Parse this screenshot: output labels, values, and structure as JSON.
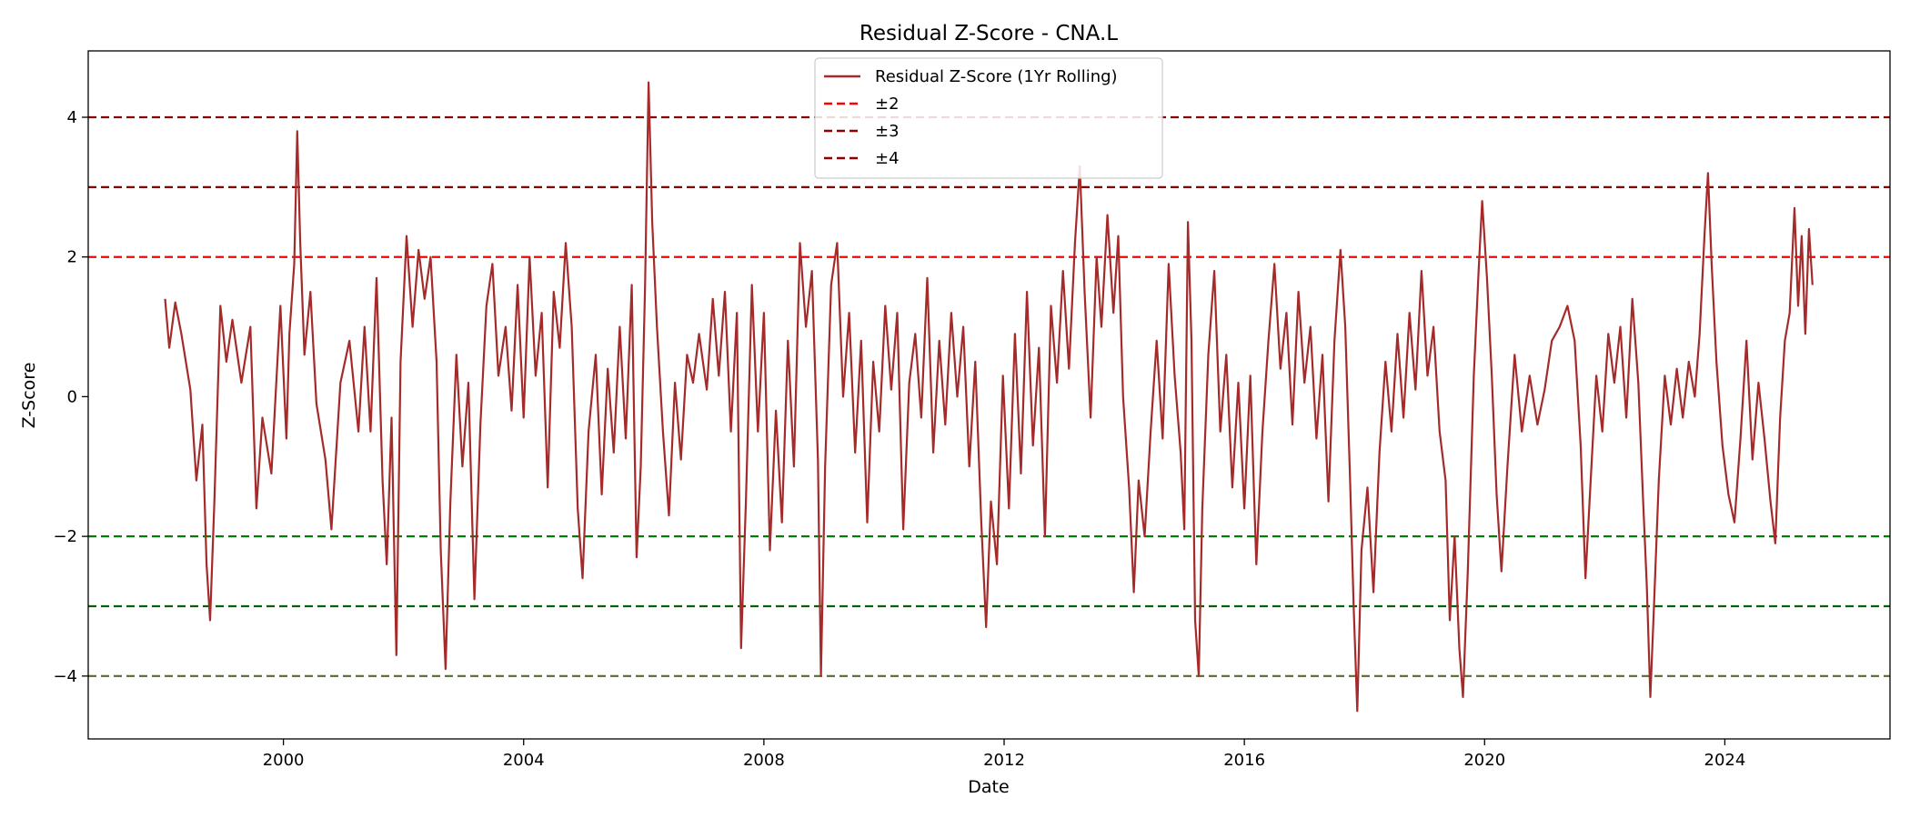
{
  "chart_data": {
    "type": "line",
    "title": "Residual Z-Score - CNA.L",
    "xlabel": "Date",
    "ylabel": "Z-Score",
    "xlim": [
      1996.75,
      2026.75
    ],
    "ylim": [
      -4.9,
      4.95
    ],
    "x_ticks": [
      2000,
      2004,
      2008,
      2012,
      2016,
      2020,
      2024
    ],
    "y_ticks": [
      -4,
      -2,
      0,
      2,
      4
    ],
    "y_tick_labels": [
      "−4",
      "−2",
      "0",
      "2",
      "4"
    ],
    "grid": false,
    "legend_position": "top-center",
    "series": [
      {
        "name": "Residual Z-Score (1Yr Rolling)",
        "color": "#a52a2a",
        "points": [
          [
            1998.03,
            1.4
          ],
          [
            1998.1,
            0.7
          ],
          [
            1998.2,
            1.35
          ],
          [
            1998.3,
            0.9
          ],
          [
            1998.45,
            0.1
          ],
          [
            1998.55,
            -1.2
          ],
          [
            1998.65,
            -0.4
          ],
          [
            1998.72,
            -2.4
          ],
          [
            1998.78,
            -3.2
          ],
          [
            1998.85,
            -1.5
          ],
          [
            1998.95,
            1.3
          ],
          [
            1999.05,
            0.5
          ],
          [
            1999.15,
            1.1
          ],
          [
            1999.3,
            0.2
          ],
          [
            1999.45,
            1.0
          ],
          [
            1999.55,
            -1.6
          ],
          [
            1999.65,
            -0.3
          ],
          [
            1999.8,
            -1.1
          ],
          [
            1999.95,
            1.3
          ],
          [
            2000.05,
            -0.6
          ],
          [
            2000.1,
            0.9
          ],
          [
            2000.18,
            1.9
          ],
          [
            2000.23,
            3.8
          ],
          [
            2000.28,
            2.2
          ],
          [
            2000.35,
            0.6
          ],
          [
            2000.45,
            1.5
          ],
          [
            2000.55,
            -0.1
          ],
          [
            2000.7,
            -0.9
          ],
          [
            2000.8,
            -1.9
          ],
          [
            2000.95,
            0.2
          ],
          [
            2001.1,
            0.8
          ],
          [
            2001.25,
            -0.5
          ],
          [
            2001.35,
            1.0
          ],
          [
            2001.45,
            -0.5
          ],
          [
            2001.55,
            1.7
          ],
          [
            2001.65,
            -1.2
          ],
          [
            2001.72,
            -2.4
          ],
          [
            2001.8,
            -0.3
          ],
          [
            2001.88,
            -3.7
          ],
          [
            2001.95,
            0.5
          ],
          [
            2002.05,
            2.3
          ],
          [
            2002.15,
            1.0
          ],
          [
            2002.25,
            2.1
          ],
          [
            2002.35,
            1.4
          ],
          [
            2002.45,
            2.0
          ],
          [
            2002.55,
            0.5
          ],
          [
            2002.62,
            -2.2
          ],
          [
            2002.7,
            -3.9
          ],
          [
            2002.78,
            -1.5
          ],
          [
            2002.88,
            0.6
          ],
          [
            2002.98,
            -1.0
          ],
          [
            2003.08,
            0.2
          ],
          [
            2003.18,
            -2.9
          ],
          [
            2003.28,
            -0.4
          ],
          [
            2003.38,
            1.3
          ],
          [
            2003.48,
            1.9
          ],
          [
            2003.58,
            0.3
          ],
          [
            2003.7,
            1.0
          ],
          [
            2003.8,
            -0.2
          ],
          [
            2003.9,
            1.6
          ],
          [
            2004.0,
            -0.3
          ],
          [
            2004.1,
            2.0
          ],
          [
            2004.2,
            0.3
          ],
          [
            2004.3,
            1.2
          ],
          [
            2004.4,
            -1.3
          ],
          [
            2004.5,
            1.5
          ],
          [
            2004.6,
            0.7
          ],
          [
            2004.7,
            2.2
          ],
          [
            2004.8,
            1.0
          ],
          [
            2004.9,
            -1.6
          ],
          [
            2004.98,
            -2.6
          ],
          [
            2005.08,
            -0.5
          ],
          [
            2005.2,
            0.6
          ],
          [
            2005.3,
            -1.4
          ],
          [
            2005.4,
            0.4
          ],
          [
            2005.5,
            -0.8
          ],
          [
            2005.6,
            1.0
          ],
          [
            2005.7,
            -0.6
          ],
          [
            2005.8,
            1.6
          ],
          [
            2005.88,
            -2.3
          ],
          [
            2005.95,
            -1.0
          ],
          [
            2006.02,
            1.5
          ],
          [
            2006.08,
            4.5
          ],
          [
            2006.14,
            2.5
          ],
          [
            2006.22,
            1.0
          ],
          [
            2006.32,
            -0.5
          ],
          [
            2006.42,
            -1.7
          ],
          [
            2006.52,
            0.2
          ],
          [
            2006.62,
            -0.9
          ],
          [
            2006.72,
            0.6
          ],
          [
            2006.82,
            0.2
          ],
          [
            2006.92,
            0.9
          ],
          [
            2007.05,
            0.1
          ],
          [
            2007.15,
            1.4
          ],
          [
            2007.25,
            0.3
          ],
          [
            2007.35,
            1.5
          ],
          [
            2007.45,
            -0.5
          ],
          [
            2007.55,
            1.2
          ],
          [
            2007.62,
            -3.6
          ],
          [
            2007.7,
            -1.5
          ],
          [
            2007.8,
            1.6
          ],
          [
            2007.9,
            -0.5
          ],
          [
            2008.0,
            1.2
          ],
          [
            2008.1,
            -2.2
          ],
          [
            2008.2,
            -0.2
          ],
          [
            2008.3,
            -1.8
          ],
          [
            2008.4,
            0.8
          ],
          [
            2008.5,
            -1.0
          ],
          [
            2008.6,
            2.2
          ],
          [
            2008.7,
            1.0
          ],
          [
            2008.8,
            1.8
          ],
          [
            2008.9,
            -0.9
          ],
          [
            2008.95,
            -4.0
          ],
          [
            2009.02,
            -1.0
          ],
          [
            2009.12,
            1.6
          ],
          [
            2009.22,
            2.2
          ],
          [
            2009.32,
            0.0
          ],
          [
            2009.42,
            1.2
          ],
          [
            2009.52,
            -0.8
          ],
          [
            2009.62,
            0.8
          ],
          [
            2009.72,
            -1.8
          ],
          [
            2009.82,
            0.5
          ],
          [
            2009.92,
            -0.5
          ],
          [
            2010.02,
            1.3
          ],
          [
            2010.12,
            0.1
          ],
          [
            2010.22,
            1.2
          ],
          [
            2010.32,
            -1.9
          ],
          [
            2010.42,
            0.2
          ],
          [
            2010.52,
            0.9
          ],
          [
            2010.62,
            -0.3
          ],
          [
            2010.72,
            1.7
          ],
          [
            2010.82,
            -0.8
          ],
          [
            2010.92,
            0.8
          ],
          [
            2011.02,
            -0.4
          ],
          [
            2011.12,
            1.2
          ],
          [
            2011.22,
            0.0
          ],
          [
            2011.32,
            1.0
          ],
          [
            2011.42,
            -1.0
          ],
          [
            2011.52,
            0.5
          ],
          [
            2011.62,
            -1.8
          ],
          [
            2011.7,
            -3.3
          ],
          [
            2011.78,
            -1.5
          ],
          [
            2011.88,
            -2.4
          ],
          [
            2011.98,
            0.3
          ],
          [
            2012.08,
            -1.6
          ],
          [
            2012.18,
            0.9
          ],
          [
            2012.28,
            -1.1
          ],
          [
            2012.38,
            1.5
          ],
          [
            2012.48,
            -0.7
          ],
          [
            2012.58,
            0.7
          ],
          [
            2012.68,
            -2.0
          ],
          [
            2012.78,
            1.3
          ],
          [
            2012.88,
            0.2
          ],
          [
            2012.98,
            1.8
          ],
          [
            2013.08,
            0.4
          ],
          [
            2013.18,
            2.2
          ],
          [
            2013.26,
            3.3
          ],
          [
            2013.34,
            1.5
          ],
          [
            2013.44,
            -0.3
          ],
          [
            2013.54,
            2.0
          ],
          [
            2013.62,
            1.0
          ],
          [
            2013.72,
            2.6
          ],
          [
            2013.82,
            1.2
          ],
          [
            2013.9,
            2.3
          ],
          [
            2013.98,
            0.0
          ],
          [
            2014.08,
            -1.3
          ],
          [
            2014.16,
            -2.8
          ],
          [
            2014.24,
            -1.2
          ],
          [
            2014.34,
            -2.0
          ],
          [
            2014.44,
            -0.5
          ],
          [
            2014.54,
            0.8
          ],
          [
            2014.64,
            -0.6
          ],
          [
            2014.74,
            1.9
          ],
          [
            2014.84,
            0.3
          ],
          [
            2014.94,
            -0.8
          ],
          [
            2015.0,
            -1.9
          ],
          [
            2015.06,
            2.5
          ],
          [
            2015.12,
            0.8
          ],
          [
            2015.18,
            -3.2
          ],
          [
            2015.24,
            -4.0
          ],
          [
            2015.3,
            -1.6
          ],
          [
            2015.4,
            0.6
          ],
          [
            2015.5,
            1.8
          ],
          [
            2015.6,
            -0.5
          ],
          [
            2015.7,
            0.6
          ],
          [
            2015.8,
            -1.3
          ],
          [
            2015.9,
            0.2
          ],
          [
            2016.0,
            -1.6
          ],
          [
            2016.1,
            0.3
          ],
          [
            2016.2,
            -2.4
          ],
          [
            2016.3,
            -0.5
          ],
          [
            2016.4,
            0.8
          ],
          [
            2016.5,
            1.9
          ],
          [
            2016.6,
            0.4
          ],
          [
            2016.7,
            1.2
          ],
          [
            2016.8,
            -0.4
          ],
          [
            2016.9,
            1.5
          ],
          [
            2017.0,
            0.2
          ],
          [
            2017.1,
            1.0
          ],
          [
            2017.2,
            -0.6
          ],
          [
            2017.3,
            0.6
          ],
          [
            2017.4,
            -1.5
          ],
          [
            2017.5,
            0.8
          ],
          [
            2017.6,
            2.1
          ],
          [
            2017.68,
            1.0
          ],
          [
            2017.76,
            -1.2
          ],
          [
            2017.82,
            -3.0
          ],
          [
            2017.88,
            -4.5
          ],
          [
            2017.95,
            -2.2
          ],
          [
            2018.05,
            -1.3
          ],
          [
            2018.15,
            -2.8
          ],
          [
            2018.25,
            -0.8
          ],
          [
            2018.35,
            0.5
          ],
          [
            2018.45,
            -0.5
          ],
          [
            2018.55,
            0.9
          ],
          [
            2018.65,
            -0.3
          ],
          [
            2018.75,
            1.2
          ],
          [
            2018.85,
            0.1
          ],
          [
            2018.95,
            1.8
          ],
          [
            2019.05,
            0.3
          ],
          [
            2019.15,
            1.0
          ],
          [
            2019.25,
            -0.5
          ],
          [
            2019.35,
            -1.2
          ],
          [
            2019.42,
            -3.2
          ],
          [
            2019.5,
            -2.0
          ],
          [
            2019.58,
            -3.6
          ],
          [
            2019.64,
            -4.3
          ],
          [
            2019.72,
            -2.5
          ],
          [
            2019.82,
            0.3
          ],
          [
            2019.9,
            1.8
          ],
          [
            2019.96,
            2.8
          ],
          [
            2020.04,
            1.7
          ],
          [
            2020.12,
            0.3
          ],
          [
            2020.2,
            -1.4
          ],
          [
            2020.28,
            -2.5
          ],
          [
            2020.38,
            -1.0
          ],
          [
            2020.5,
            0.6
          ],
          [
            2020.62,
            -0.5
          ],
          [
            2020.75,
            0.3
          ],
          [
            2020.88,
            -0.4
          ],
          [
            2021.0,
            0.1
          ],
          [
            2021.12,
            0.8
          ],
          [
            2021.25,
            1.0
          ],
          [
            2021.38,
            1.3
          ],
          [
            2021.5,
            0.8
          ],
          [
            2021.6,
            -0.7
          ],
          [
            2021.68,
            -2.6
          ],
          [
            2021.76,
            -1.3
          ],
          [
            2021.86,
            0.3
          ],
          [
            2021.96,
            -0.5
          ],
          [
            2022.06,
            0.9
          ],
          [
            2022.16,
            0.2
          ],
          [
            2022.26,
            1.0
          ],
          [
            2022.36,
            -0.3
          ],
          [
            2022.46,
            1.4
          ],
          [
            2022.56,
            0.2
          ],
          [
            2022.64,
            -1.5
          ],
          [
            2022.7,
            -2.7
          ],
          [
            2022.76,
            -4.3
          ],
          [
            2022.82,
            -3.0
          ],
          [
            2022.9,
            -1.2
          ],
          [
            2023.0,
            0.3
          ],
          [
            2023.1,
            -0.4
          ],
          [
            2023.2,
            0.4
          ],
          [
            2023.3,
            -0.3
          ],
          [
            2023.4,
            0.5
          ],
          [
            2023.5,
            0.0
          ],
          [
            2023.58,
            0.9
          ],
          [
            2023.66,
            2.3
          ],
          [
            2023.72,
            3.2
          ],
          [
            2023.78,
            1.9
          ],
          [
            2023.86,
            0.5
          ],
          [
            2023.96,
            -0.7
          ],
          [
            2024.06,
            -1.4
          ],
          [
            2024.16,
            -1.8
          ],
          [
            2024.26,
            -0.6
          ],
          [
            2024.36,
            0.8
          ],
          [
            2024.46,
            -0.9
          ],
          [
            2024.56,
            0.2
          ],
          [
            2024.66,
            -0.6
          ],
          [
            2024.76,
            -1.5
          ],
          [
            2024.84,
            -2.1
          ],
          [
            2024.92,
            -0.3
          ],
          [
            2025.0,
            0.8
          ],
          [
            2025.08,
            1.2
          ],
          [
            2025.16,
            2.7
          ],
          [
            2025.22,
            1.3
          ],
          [
            2025.28,
            2.3
          ],
          [
            2025.34,
            0.9
          ],
          [
            2025.4,
            2.4
          ],
          [
            2025.46,
            1.6
          ]
        ]
      }
    ],
    "reference_lines": [
      {
        "y": 2,
        "color": "#ff0000"
      },
      {
        "y": 3,
        "color": "#8b0000"
      },
      {
        "y": 4,
        "color": "#8b0000"
      },
      {
        "y": -2,
        "color": "#008000"
      },
      {
        "y": -3,
        "color": "#006400"
      },
      {
        "y": -4,
        "color": "#556b2f"
      }
    ],
    "legend": [
      {
        "label": "Residual Z-Score (1Yr Rolling)",
        "color": "#a52a2a",
        "style": "solid"
      },
      {
        "label": "±2",
        "color": "#ff0000",
        "style": "dashed"
      },
      {
        "label": "±3",
        "color": "#8b0000",
        "style": "dashed"
      },
      {
        "label": "±4",
        "color": "#8b0000",
        "style": "dashed"
      }
    ]
  }
}
